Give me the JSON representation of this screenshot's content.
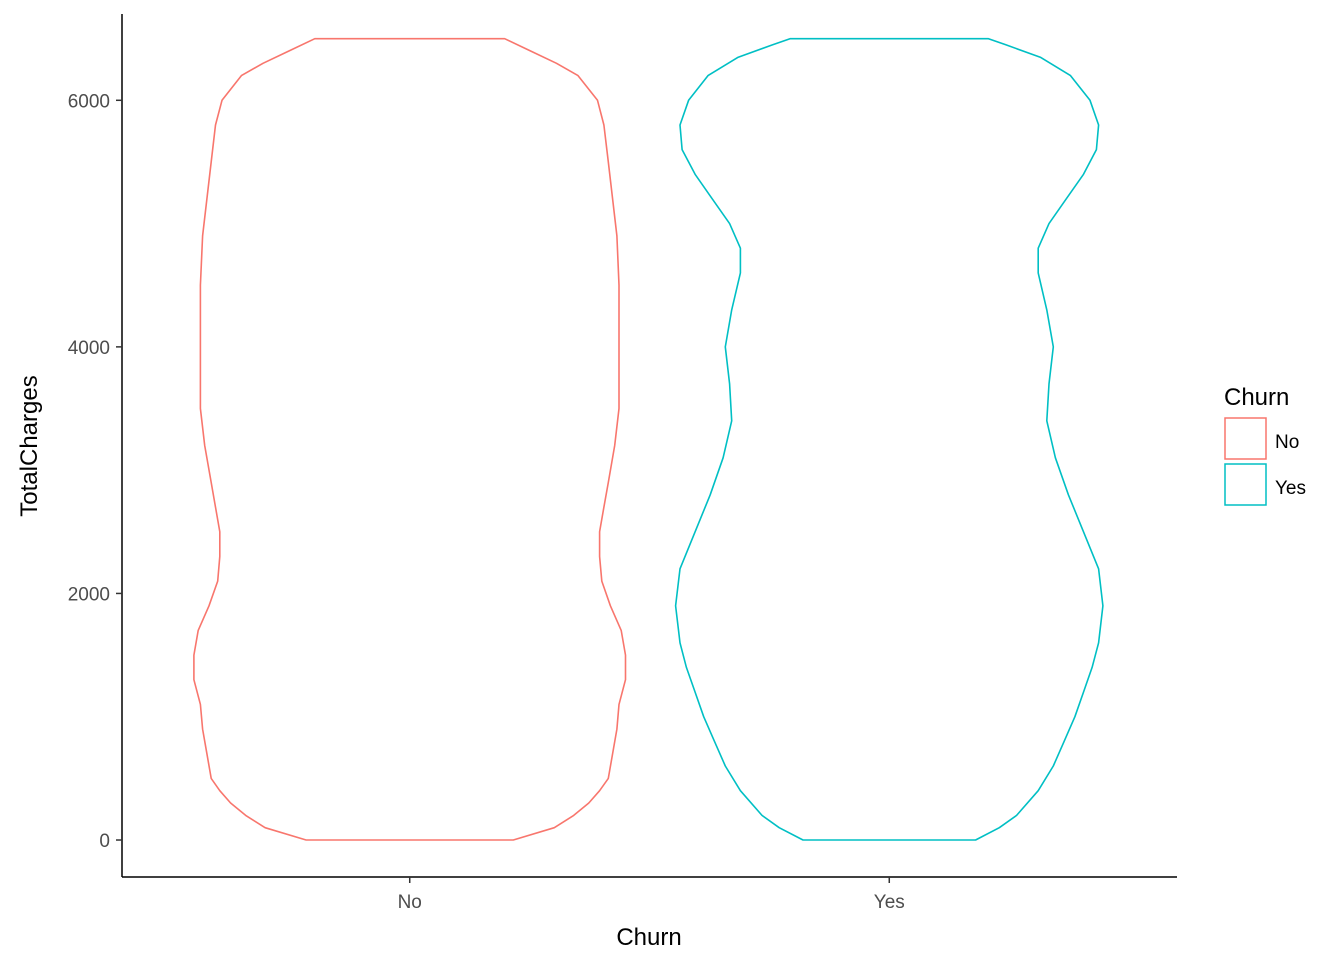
{
  "chart_data": {
    "type": "violin",
    "title": "",
    "xlabel": "Churn",
    "ylabel": "TotalCharges",
    "categories": [
      "No",
      "Yes"
    ],
    "ylim": [
      -300,
      6700
    ],
    "yticks": [
      0,
      2000,
      4000,
      6000
    ],
    "grid": false,
    "legend": {
      "title": "Churn",
      "position": "right",
      "entries": [
        {
          "label": "No",
          "color": "#F8766D"
        },
        {
          "label": "Yes",
          "color": "#00BFC4"
        }
      ]
    },
    "series": [
      {
        "name": "No",
        "color": "#F8766D",
        "profile": [
          [
            0,
            0.48
          ],
          [
            100,
            0.67
          ],
          [
            200,
            0.76
          ],
          [
            300,
            0.83
          ],
          [
            400,
            0.88
          ],
          [
            500,
            0.92
          ],
          [
            700,
            0.94
          ],
          [
            900,
            0.96
          ],
          [
            1100,
            0.97
          ],
          [
            1300,
            1.0
          ],
          [
            1500,
            1.0
          ],
          [
            1700,
            0.98
          ],
          [
            1900,
            0.93
          ],
          [
            2100,
            0.89
          ],
          [
            2300,
            0.88
          ],
          [
            2500,
            0.88
          ],
          [
            2700,
            0.9
          ],
          [
            2900,
            0.92
          ],
          [
            3200,
            0.95
          ],
          [
            3500,
            0.97
          ],
          [
            4000,
            0.97
          ],
          [
            4500,
            0.97
          ],
          [
            4900,
            0.96
          ],
          [
            5200,
            0.94
          ],
          [
            5500,
            0.92
          ],
          [
            5800,
            0.9
          ],
          [
            6000,
            0.87
          ],
          [
            6200,
            0.78
          ],
          [
            6300,
            0.68
          ],
          [
            6400,
            0.56
          ],
          [
            6500,
            0.44
          ]
        ]
      },
      {
        "name": "Yes",
        "color": "#00BFC4",
        "profile": [
          [
            0,
            0.4
          ],
          [
            100,
            0.51
          ],
          [
            200,
            0.59
          ],
          [
            400,
            0.69
          ],
          [
            600,
            0.76
          ],
          [
            800,
            0.81
          ],
          [
            1000,
            0.86
          ],
          [
            1200,
            0.9
          ],
          [
            1400,
            0.94
          ],
          [
            1600,
            0.97
          ],
          [
            1900,
            0.99
          ],
          [
            2200,
            0.97
          ],
          [
            2500,
            0.9
          ],
          [
            2800,
            0.83
          ],
          [
            3100,
            0.77
          ],
          [
            3400,
            0.73
          ],
          [
            3700,
            0.74
          ],
          [
            4000,
            0.76
          ],
          [
            4300,
            0.73
          ],
          [
            4600,
            0.69
          ],
          [
            4800,
            0.69
          ],
          [
            5000,
            0.74
          ],
          [
            5200,
            0.82
          ],
          [
            5400,
            0.9
          ],
          [
            5600,
            0.96
          ],
          [
            5800,
            0.97
          ],
          [
            6000,
            0.93
          ],
          [
            6200,
            0.84
          ],
          [
            6350,
            0.7
          ],
          [
            6450,
            0.54
          ],
          [
            6500,
            0.46
          ]
        ]
      }
    ]
  }
}
